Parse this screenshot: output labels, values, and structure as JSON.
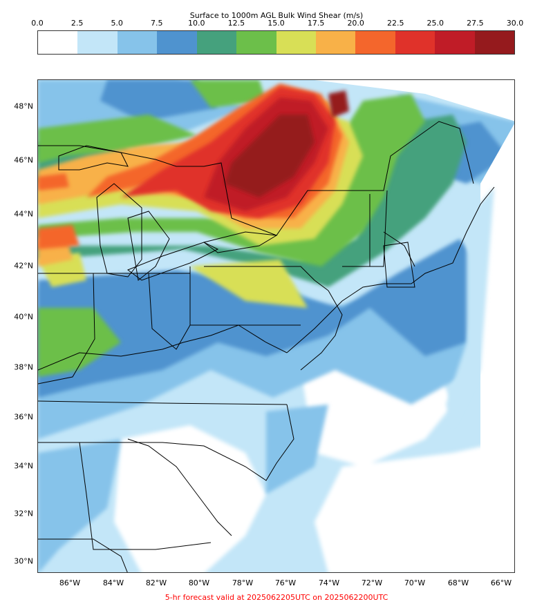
{
  "colorbar": {
    "title": "Surface to 1000m AGL Bulk Wind Shear (m/s)",
    "ticks": [
      "0.0",
      "2.5",
      "5.0",
      "7.5",
      "10.0",
      "12.5",
      "15.0",
      "17.5",
      "20.0",
      "22.5",
      "25.0",
      "27.5",
      "30.0"
    ],
    "colors": [
      "#ffffff",
      "#c3e6f8",
      "#86c3ea",
      "#4f93cf",
      "#45a17d",
      "#6cbf4a",
      "#d8df56",
      "#f8b148",
      "#f4662c",
      "#e0322a",
      "#c01c27",
      "#951a1d"
    ]
  },
  "map": {
    "lat_labels": [
      "48°N",
      "46°N",
      "44°N",
      "42°N",
      "40°N",
      "38°N",
      "36°N",
      "34°N",
      "32°N",
      "30°N"
    ],
    "lon_labels": [
      "86°W",
      "84°W",
      "82°W",
      "80°W",
      "78°W",
      "76°W",
      "74°W",
      "72°W",
      "70°W",
      "68°W",
      "66°W"
    ]
  },
  "footer": {
    "text": "5-hr forecast valid at 2025062205UTC on 2025062200UTC",
    "color": "#ff0000"
  }
}
